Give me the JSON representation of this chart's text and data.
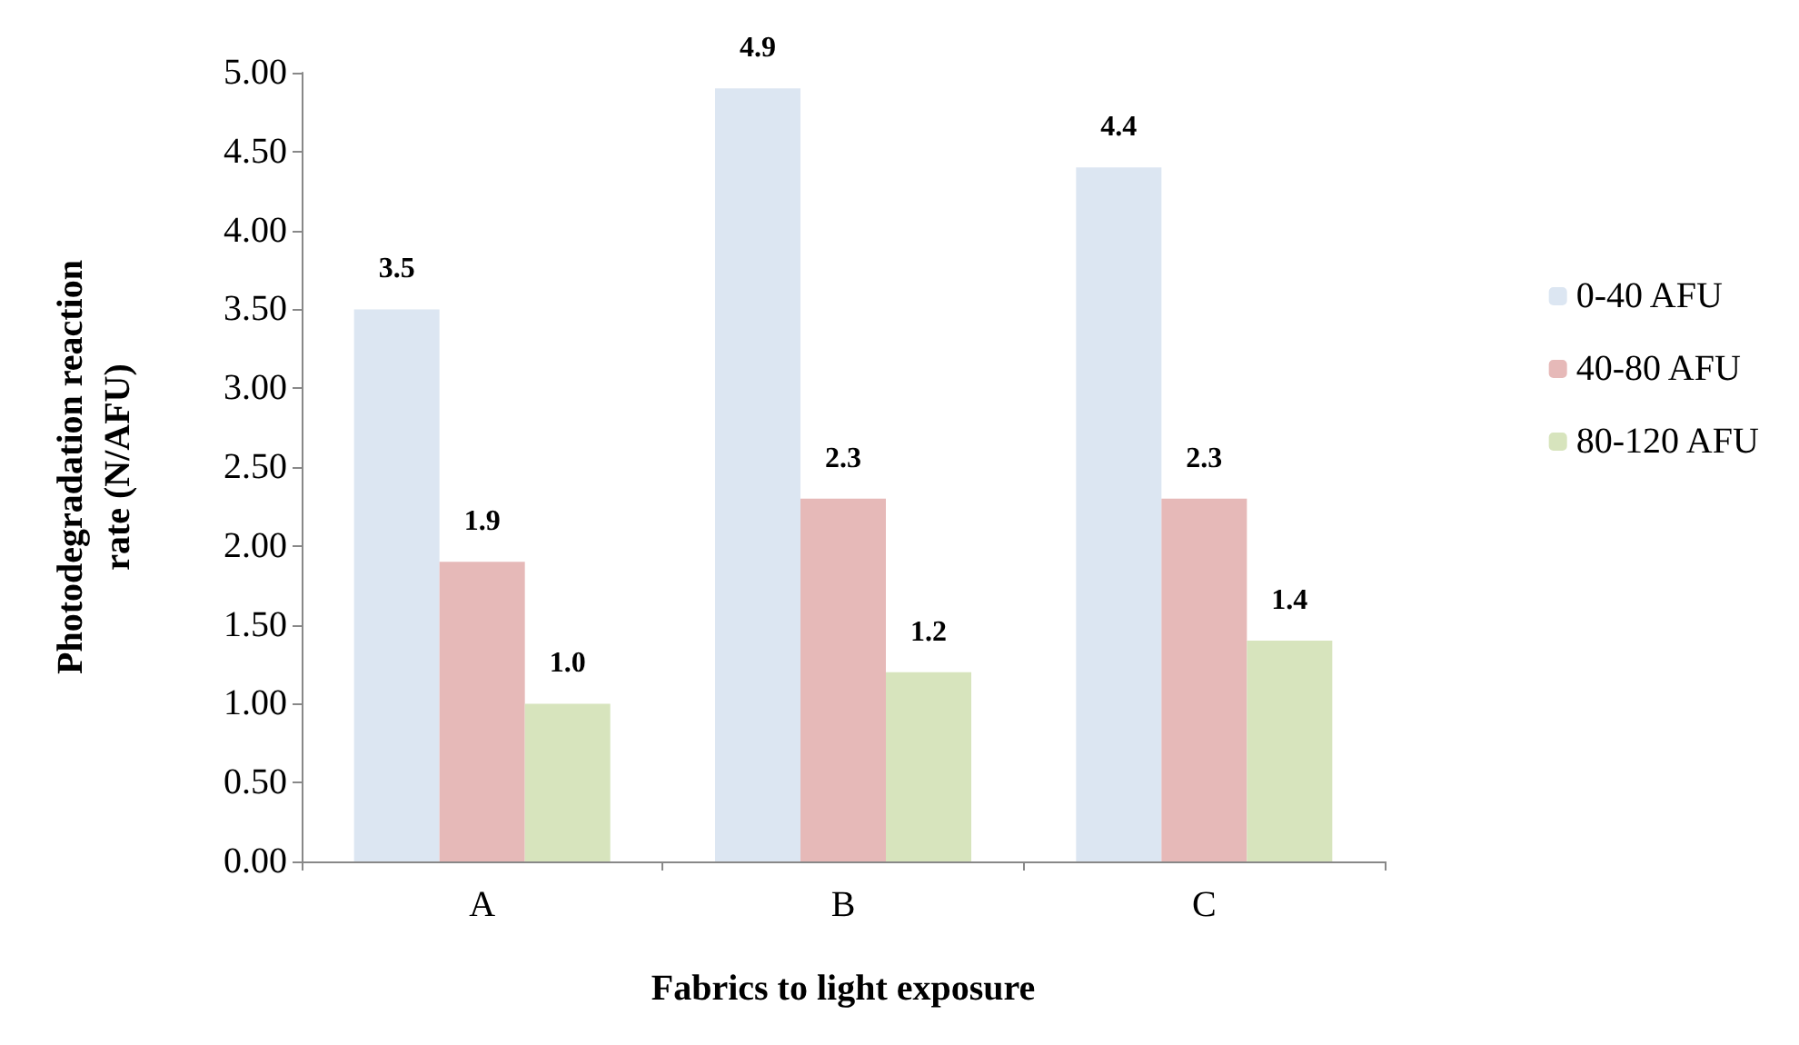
{
  "chart_data": {
    "type": "bar",
    "xlabel": "Fabrics to light exposure",
    "ylabel": "Photodegradation reaction\nrate (N/AFU)",
    "categories": [
      "A",
      "B",
      "C"
    ],
    "series": [
      {
        "name": "0-40 AFU",
        "color": "#dce6f2",
        "values": [
          3.5,
          4.9,
          4.4
        ],
        "value_labels": [
          "3.5",
          "4.9",
          "4.4"
        ]
      },
      {
        "name": "40-80 AFU",
        "color": "#e6b9b8",
        "values": [
          1.9,
          2.3,
          2.3
        ],
        "value_labels": [
          "1.9",
          "2.3",
          "2.3"
        ]
      },
      {
        "name": "80-120 AFU",
        "color": "#d7e4bd",
        "values": [
          1.0,
          1.2,
          1.4
        ],
        "value_labels": [
          "1.0",
          "1.2",
          "1.4"
        ]
      }
    ],
    "ylim": [
      0,
      5
    ],
    "yticks": [
      {
        "value": 0,
        "label": "0.00"
      },
      {
        "value": 0.5,
        "label": "0.50"
      },
      {
        "value": 1,
        "label": "1.00"
      },
      {
        "value": 1.5,
        "label": "1.50"
      },
      {
        "value": 2,
        "label": "2.00"
      },
      {
        "value": 2.5,
        "label": "2.50"
      },
      {
        "value": 3,
        "label": "3.00"
      },
      {
        "value": 3.5,
        "label": "3.50"
      },
      {
        "value": 4,
        "label": "4.00"
      },
      {
        "value": 4.5,
        "label": "4.50"
      },
      {
        "value": 5,
        "label": "5.00"
      }
    ],
    "grid": false,
    "legend": "right"
  }
}
